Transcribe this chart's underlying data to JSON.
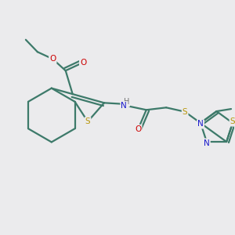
{
  "background_color": "#ebebed",
  "bond_color": "#3d7a6a",
  "atom_colors": {
    "S": "#b8960a",
    "N": "#1a1acc",
    "O": "#cc0000",
    "C": "#3d7a6a",
    "H": "#707070"
  },
  "figsize": [
    3.0,
    3.0
  ],
  "dpi": 100,
  "lw": 1.6,
  "fontsize": 7.5
}
